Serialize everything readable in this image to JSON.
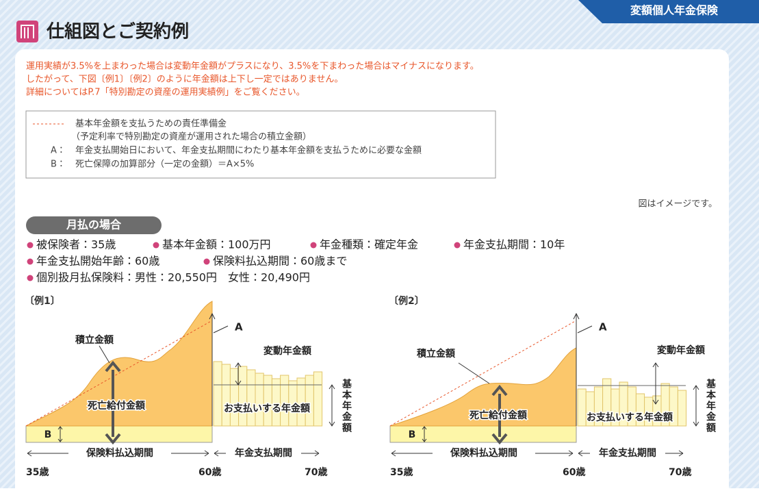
{
  "header": {
    "tag": "変額個人年金保険",
    "title": "仕組図とご契約例"
  },
  "notice": [
    "運用実績が3.5%を上まわった場合は変動年金額がプラスになり、3.5%を下まわった場合はマイナスになります。",
    "したがって、下図〔例1〕〔例2〕のように年金額は上下し一定ではありません。",
    "詳細についてはP.7「特別勘定の資産の運用実績例」をご覧ください。"
  ],
  "legend": {
    "line_text": "基本年金額を支払うための責任準備金",
    "line_note": "（予定利率で特別勘定の資産が運用された場合の積立金額）",
    "items": [
      {
        "key": "A：",
        "text": "年金支払開始日において、年金支払期間にわたり基本年金額を支払うために必要な金額"
      },
      {
        "key": "B：",
        "text": "死亡保障の加算部分（一定の金額）＝A×5%"
      }
    ]
  },
  "image_note": "図はイメージです。",
  "section": {
    "title": "月払の場合",
    "conditions": [
      [
        "被保険者：35歳",
        "基本年金額：100万円",
        "年金種類：確定年金",
        "年金支払期間：10年"
      ],
      [
        "年金支払開始年齢：60歳",
        "保険料払込期間：60歳まで"
      ],
      [
        "個別扱月払保険料：男性：20,550円　女性：20,490円"
      ]
    ]
  },
  "examples": [
    {
      "label": "〔例1〕",
      "accumulated": "積立金額",
      "a": "A",
      "variable_annuity": "変動年金額",
      "death_benefit": "死亡給付金額",
      "payout": "お支払いする年金額",
      "base_annuity": "基本年金額",
      "b": "B",
      "premium_period": "保険料払込期間",
      "annuity_period": "年金支払期間",
      "ages": [
        "35歳",
        "60歳",
        "70歳"
      ]
    },
    {
      "label": "〔例2〕",
      "accumulated": "積立金額",
      "a": "A",
      "variable_annuity": "変動年金額",
      "death_benefit": "死亡給付金額",
      "payout": "お支払いする年金額",
      "base_annuity": "基本年金額",
      "b": "B",
      "premium_period": "保険料払込期間",
      "annuity_period": "年金支払期間",
      "ages": [
        "35歳",
        "60歳",
        "70歳"
      ]
    }
  ]
}
